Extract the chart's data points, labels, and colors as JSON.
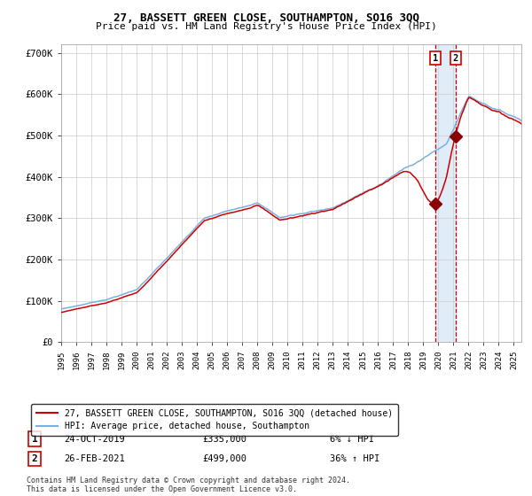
{
  "title1": "27, BASSETT GREEN CLOSE, SOUTHAMPTON, SO16 3QQ",
  "title2": "Price paid vs. HM Land Registry's House Price Index (HPI)",
  "hpi_color": "#7ab0dc",
  "price_color": "#cc0000",
  "marker_color": "#8b0000",
  "bg_color": "#ffffff",
  "grid_color": "#cccccc",
  "highlight_color": "#e0ecf8",
  "dashed_color": "#cc0000",
  "legend1": "27, BASSETT GREEN CLOSE, SOUTHAMPTON, SO16 3QQ (detached house)",
  "legend2": "HPI: Average price, detached house, Southampton",
  "annotation1_date": "24-OCT-2019",
  "annotation1_price": "£335,000",
  "annotation1_hpi": "6% ↓ HPI",
  "annotation2_date": "26-FEB-2021",
  "annotation2_price": "£499,000",
  "annotation2_hpi": "36% ↑ HPI",
  "footer": "Contains HM Land Registry data © Crown copyright and database right 2024.\nThis data is licensed under the Open Government Licence v3.0.",
  "sale1_year": 2019.81,
  "sale2_year": 2021.15,
  "sale1_price": 335000,
  "sale2_price": 499000,
  "ylim": [
    0,
    720000
  ],
  "xlim_start": 1995.0,
  "xlim_end": 2025.5
}
